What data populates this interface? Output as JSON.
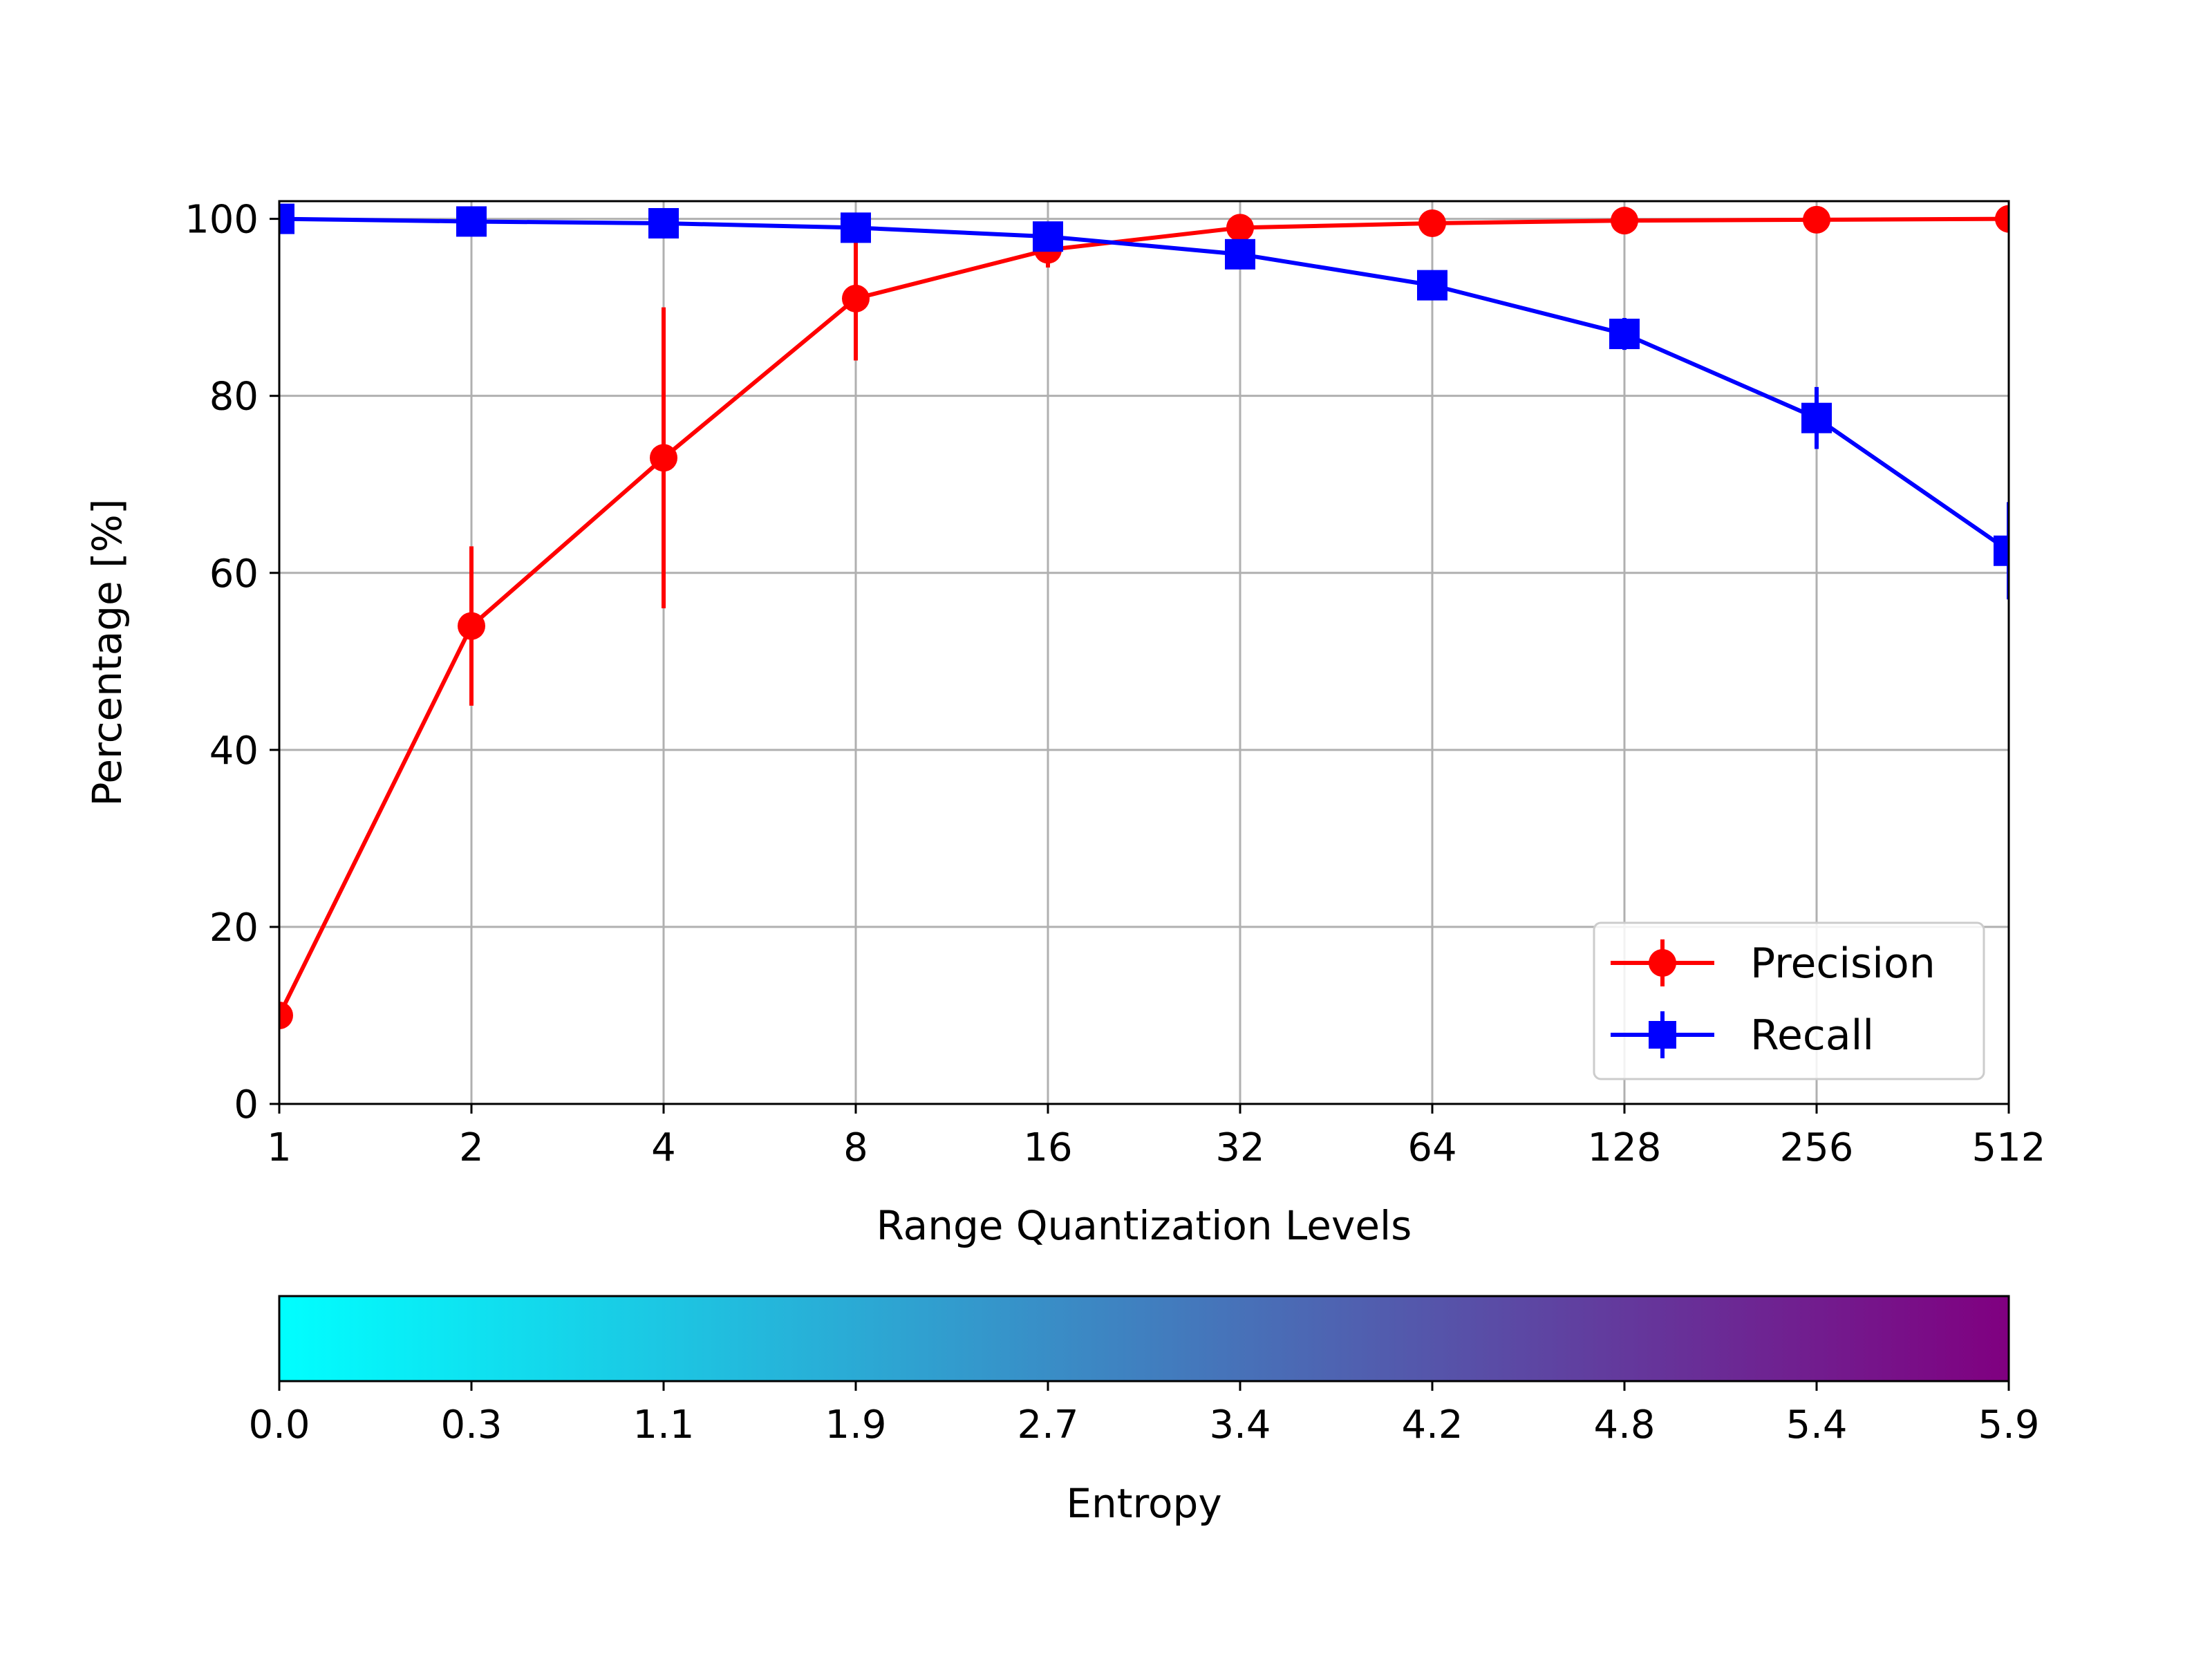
{
  "chart_data": {
    "type": "line",
    "xlabel": "Range Quantization Levels",
    "ylabel": "Percentage [%]",
    "categories": [
      "1",
      "2",
      "4",
      "8",
      "16",
      "32",
      "64",
      "128",
      "256",
      "512"
    ],
    "ylim": [
      0,
      102
    ],
    "yticks": [
      "0",
      "20",
      "40",
      "60",
      "80",
      "100"
    ],
    "grid": true,
    "legend_position": "lower-right",
    "series": [
      {
        "name": "Precision",
        "color": "#ff0000",
        "marker": "circle",
        "values": [
          10,
          54,
          73,
          91,
          96.5,
          99,
          99.5,
          99.8,
          99.9,
          100
        ],
        "errors": [
          0,
          9,
          17,
          7,
          2,
          0.5,
          0.3,
          0.1,
          0.1,
          0
        ]
      },
      {
        "name": "Recall",
        "color": "#0000ff",
        "marker": "square",
        "values": [
          100,
          99.7,
          99.5,
          99,
          98,
          96,
          92.5,
          87,
          77.5,
          62.5
        ],
        "errors": [
          0,
          0,
          0.3,
          0.5,
          0.8,
          1,
          1.3,
          1.8,
          3.5,
          5.5
        ]
      }
    ],
    "colorbar": {
      "label": "Entropy",
      "ticks": [
        "0.0",
        "0.3",
        "1.1",
        "1.9",
        "2.7",
        "3.4",
        "4.2",
        "4.8",
        "5.4",
        "5.9"
      ],
      "color_start": "#00ffff",
      "color_end": "#800080"
    }
  }
}
